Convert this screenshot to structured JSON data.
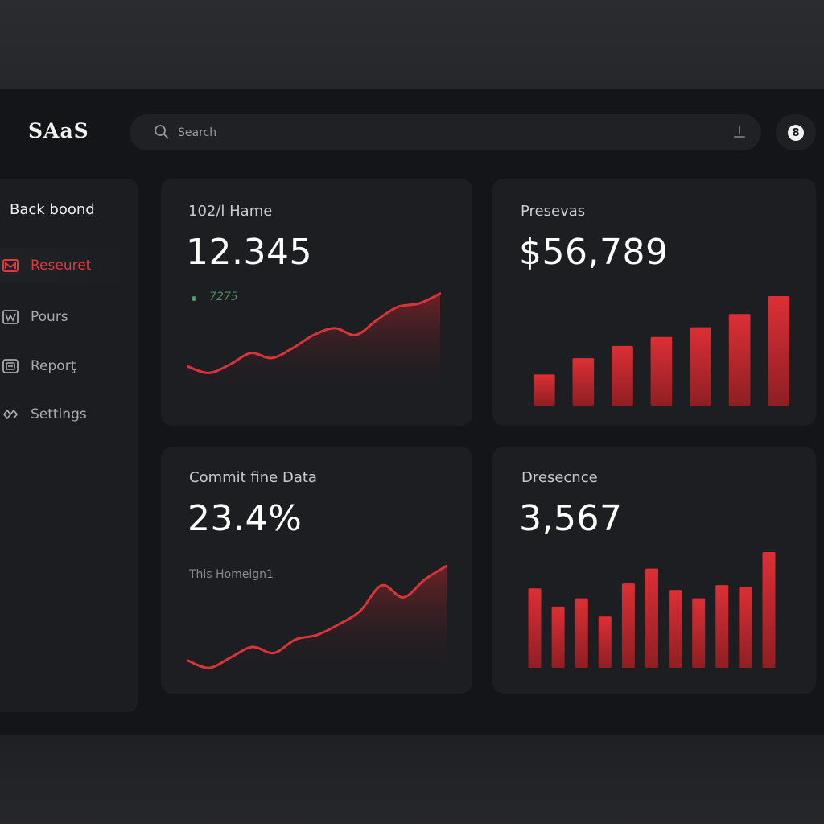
{
  "app": {
    "logo": "SAaS"
  },
  "search": {
    "placeholder": "Search",
    "value": ""
  },
  "profile": {
    "badge": "8"
  },
  "sidebar": {
    "title": "Back boond",
    "items": [
      {
        "label": "Reseuret",
        "icon": "mail-icon",
        "active": true
      },
      {
        "label": "Pours",
        "icon": "chart-box-icon",
        "active": false
      },
      {
        "label": "Reporţ",
        "icon": "report-icon",
        "active": false
      },
      {
        "label": "Settings",
        "icon": "settings-icon",
        "active": false
      }
    ]
  },
  "cards": [
    {
      "label": "102/l Hame",
      "value": "12.345",
      "sub": "7275",
      "chart_type": "line"
    },
    {
      "label": "Presevas",
      "value": "$56,789",
      "chart_type": "bar"
    },
    {
      "label": "Commit fine Data",
      "value": "23.4%",
      "sub": "This Homeign1",
      "chart_type": "line"
    },
    {
      "label": "Dresecnce",
      "value": "3,567",
      "chart_type": "bar"
    }
  ],
  "colors": {
    "accent": "#d9343a",
    "background": "#141518",
    "card": "#1d1e22"
  },
  "chart_data": [
    {
      "type": "area",
      "x": [
        0,
        1,
        2,
        3,
        4,
        5,
        6,
        7,
        8,
        9,
        10,
        11,
        12
      ],
      "values": [
        28,
        20,
        30,
        44,
        38,
        50,
        66,
        74,
        66,
        84,
        100,
        104,
        116
      ]
    },
    {
      "type": "bar",
      "values": [
        38,
        58,
        73,
        84,
        96,
        112,
        134
      ]
    },
    {
      "type": "area",
      "x": [
        0,
        1,
        2,
        3,
        4,
        5,
        6,
        7,
        8,
        9,
        10,
        11,
        12
      ],
      "values": [
        12,
        2,
        16,
        30,
        22,
        40,
        46,
        60,
        78,
        112,
        96,
        120,
        138
      ]
    },
    {
      "type": "bar",
      "values": [
        96,
        74,
        84,
        62,
        102,
        120,
        94,
        84,
        100,
        98,
        140
      ]
    }
  ]
}
